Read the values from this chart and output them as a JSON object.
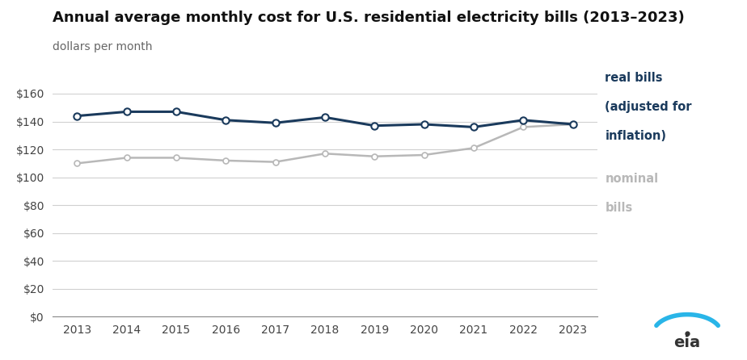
{
  "title": "Annual average monthly cost for U.S. residential electricity bills (2013–2023)",
  "subtitle": "dollars per month",
  "years": [
    2013,
    2014,
    2015,
    2016,
    2017,
    2018,
    2019,
    2020,
    2021,
    2022,
    2023
  ],
  "real_bills": [
    144,
    147,
    147,
    141,
    139,
    143,
    137,
    138,
    136,
    141,
    138
  ],
  "nominal_bills": [
    110,
    114,
    114,
    112,
    111,
    117,
    115,
    116,
    121,
    136,
    138
  ],
  "real_color": "#1a3a5c",
  "nominal_color": "#b8b8b8",
  "real_label_line1": "real bills",
  "real_label_line2": "(adjusted for",
  "real_label_line3": "inflation)",
  "nominal_label_line1": "nominal",
  "nominal_label_line2": "bills",
  "ylim": [
    0,
    160
  ],
  "yticks": [
    0,
    20,
    40,
    60,
    80,
    100,
    120,
    140,
    160
  ],
  "background_color": "#ffffff",
  "grid_color": "#d0d0d0",
  "title_fontsize": 13,
  "subtitle_fontsize": 10,
  "tick_fontsize": 10
}
